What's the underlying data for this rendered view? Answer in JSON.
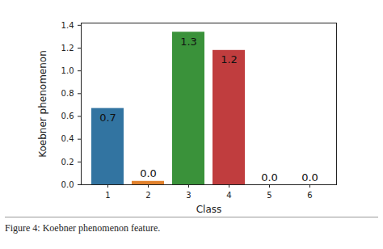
{
  "chart_data": {
    "type": "bar",
    "caption": "Figure 4: Koebner phenomenon feature.",
    "x_label": "Class",
    "y_label": "Koebner phenomenon",
    "categories": [
      "1",
      "2",
      "3",
      "4",
      "5",
      "6"
    ],
    "values": [
      0.67,
      0.03,
      1.34,
      1.18,
      0,
      0
    ],
    "value_labels": [
      "0.7",
      "0.0",
      "1.3",
      "1.2",
      "0.0",
      "0.0"
    ],
    "colors": [
      "#3274a1",
      "#e1812c",
      "#3a923a",
      "#c03d3e",
      "#9372b2",
      "#845b53"
    ],
    "ylim": [
      0,
      1.42
    ],
    "yticks": [
      {
        "value": 0,
        "label": "0.0"
      },
      {
        "value": 0.2,
        "label": "0.2"
      },
      {
        "value": 0.4,
        "label": "0.4"
      },
      {
        "value": 0.6,
        "label": "0.6"
      },
      {
        "value": 0.8,
        "label": "0.8"
      },
      {
        "value": 1.0,
        "label": "1.0"
      },
      {
        "value": 1.2,
        "label": "1.2"
      },
      {
        "value": 1.4,
        "label": "1.4"
      }
    ],
    "grid": false,
    "data_labels": true
  }
}
